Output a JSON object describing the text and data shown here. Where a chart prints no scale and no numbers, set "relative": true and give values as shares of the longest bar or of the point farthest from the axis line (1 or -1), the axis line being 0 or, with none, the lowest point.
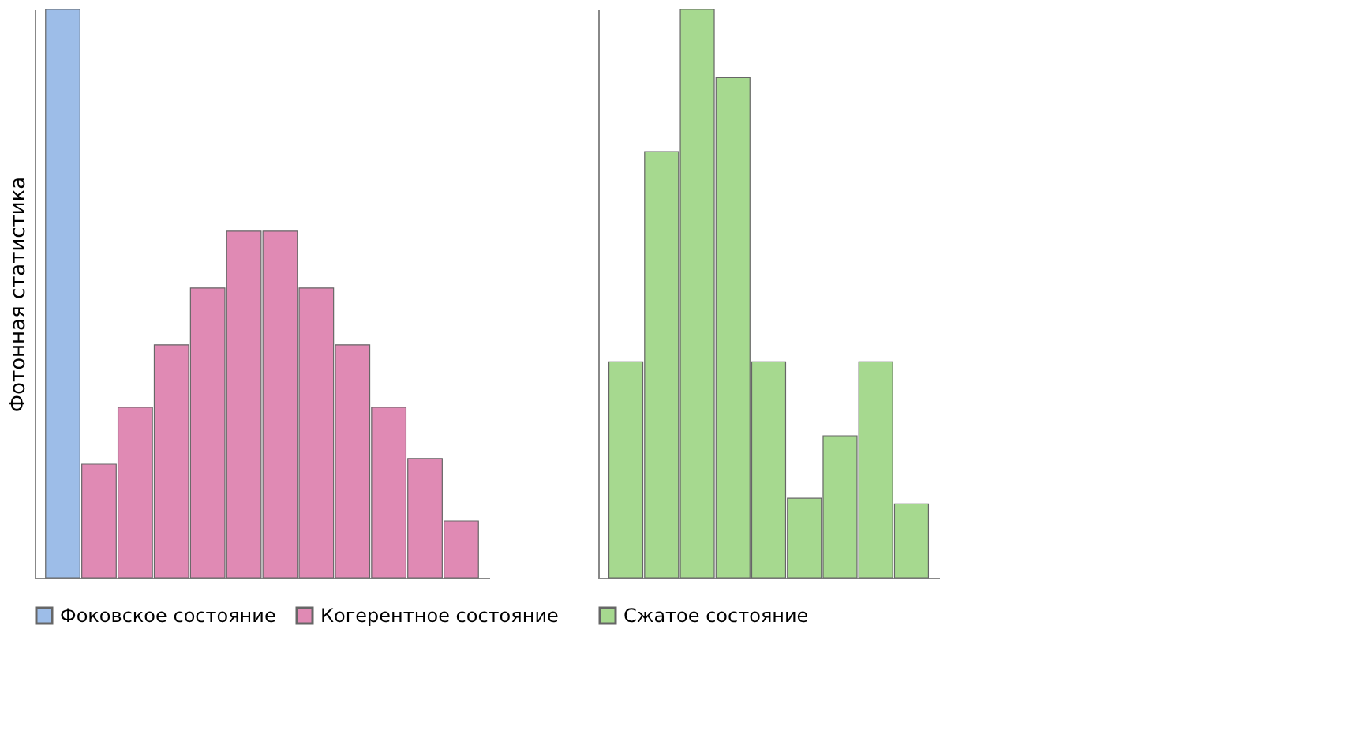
{
  "chart_data": [
    {
      "type": "bar",
      "relative": true,
      "stacked": true,
      "ylabel": "Фотонная статистика",
      "legend": "bottom",
      "categories": [
        null,
        null,
        null,
        null,
        null,
        null,
        null,
        null,
        null,
        null,
        null,
        null
      ],
      "series": [
        {
          "name": "Фоковское состояние",
          "color": "#9dbde8",
          "values": [
            1,
            null,
            null,
            null,
            null,
            null,
            null,
            null,
            null,
            null,
            null,
            null
          ]
        },
        {
          "name": "Когерентное состояние",
          "color": "#e08ab4",
          "values": [
            null,
            0.2,
            0.3,
            0.41,
            0.51,
            0.61,
            0.61,
            0.51,
            0.41,
            0.3,
            0.21,
            0.1
          ]
        }
      ]
    },
    {
      "type": "bar",
      "relative": true,
      "legend": "bottom",
      "categories": [
        null,
        null,
        null,
        null,
        null,
        null,
        null,
        null,
        null
      ],
      "series": [
        {
          "name": "Сжатое состояние",
          "color": "#a6d98f",
          "values": [
            0.38,
            0.75,
            1,
            0.88,
            0.38,
            0.14,
            0.25,
            0.38,
            0.13
          ]
        }
      ]
    }
  ]
}
